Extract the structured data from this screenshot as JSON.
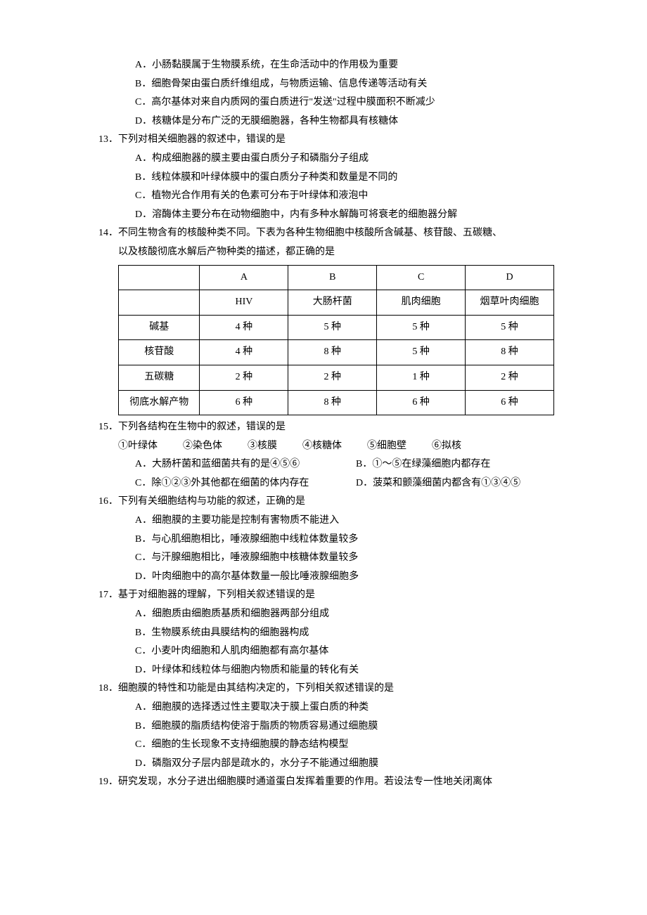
{
  "pre_options": {
    "A": "A．小肠黏膜属于生物膜系统，在生命活动中的作用极为重要",
    "B": "B．细胞骨架由蛋白质纤维组成，与物质运输、信息传递等活动有关",
    "C": "C．高尔基体对来自内质网的蛋白质进行\"发送\"过程中膜面积不断减少",
    "D": "D．核糖体是分布广泛的无膜细胞器，各种生物都具有核糖体"
  },
  "q13": {
    "stem": "13．下列对相关细胞器的叙述中，错误的是",
    "A": "A．构成细胞器的膜主要由蛋白质分子和磷脂分子组成",
    "B": "B．线粒体膜和叶绿体膜中的蛋白质分子种类和数量是不同的",
    "C": "C．植物光合作用有关的色素可分布于叶绿体和液泡中",
    "D": "D．溶酶体主要分布在动物细胞中，内有多种水解酶可将衰老的细胞器分解"
  },
  "q14": {
    "stem1": "14．不同生物含有的核酸种类不同。下表为各种生物细胞中核酸所含碱基、核苷酸、五碳糖、",
    "stem2": "以及核酸彻底水解后产物种类的描述，都正确的是",
    "table": {
      "header": [
        "",
        "A",
        "B",
        "C",
        "D"
      ],
      "row1": [
        "",
        "HIV",
        "大肠杆菌",
        "肌肉细胞",
        "烟草叶肉细胞"
      ],
      "rows": [
        [
          "碱基",
          "4 种",
          "5 种",
          "5 种",
          "5 种"
        ],
        [
          "核苷酸",
          "4 种",
          "8 种",
          "5 种",
          "8 种"
        ],
        [
          "五碳糖",
          "2 种",
          "2 种",
          "1 种",
          "2 种"
        ],
        [
          "彻底水解产物",
          "6 种",
          "8 种",
          "6 种",
          "6 种"
        ]
      ]
    }
  },
  "q15": {
    "stem": "15．下列各结构在生物中的叙述，错误的是",
    "circled": [
      "①叶绿体",
      "②染色体",
      "③核膜",
      "④核糖体",
      "⑤细胞壁",
      "⑥拟核"
    ],
    "A": "A．大肠杆菌和蓝细菌共有的是④⑤⑥",
    "B": "B．①～⑤在绿藻细胞内都存在",
    "C": "C．除①②③外其他都在细菌的体内存在",
    "D": "D．菠菜和颤藻细菌内都含有①③④⑤"
  },
  "q16": {
    "stem": "16．下列有关细胞结构与功能的叙述，正确的是",
    "A": "A．细胞膜的主要功能是控制有害物质不能进入",
    "B": "B．与心肌细胞相比，唾液腺细胞中线粒体数量较多",
    "C": "C．与汗腺细胞相比，唾液腺细胞中核糖体数量较多",
    "D": "D．叶肉细胞中的高尔基体数量一般比唾液腺细胞多"
  },
  "q17": {
    "stem": "17．基于对细胞器的理解，下列相关叙述错误的是",
    "A": "A．细胞质由细胞质基质和细胞器两部分组成",
    "B": "B．生物膜系统由具膜结构的细胞器构成",
    "C": "C．小麦叶肉细胞和人肌肉细胞都有高尔基体",
    "D": "D．叶绿体和线粒体与细胞内物质和能量的转化有关"
  },
  "q18": {
    "stem": "18．细胞膜的特性和功能是由其结构决定的，下列相关叙述错误的是",
    "A": "A．细胞膜的选择透过性主要取决于膜上蛋白质的种类",
    "B": "B．细胞膜的脂质结构使溶于脂质的物质容易通过细胞膜",
    "C": "C．细胞的生长现象不支持细胞膜的静态结构模型",
    "D": "D．磷脂双分子层内部是疏水的，水分子不能通过细胞膜"
  },
  "q19": {
    "stem": "19．研究发现，水分子进出细胞膜时通道蛋白发挥着重要的作用。若设法专一性地关闭离体"
  }
}
